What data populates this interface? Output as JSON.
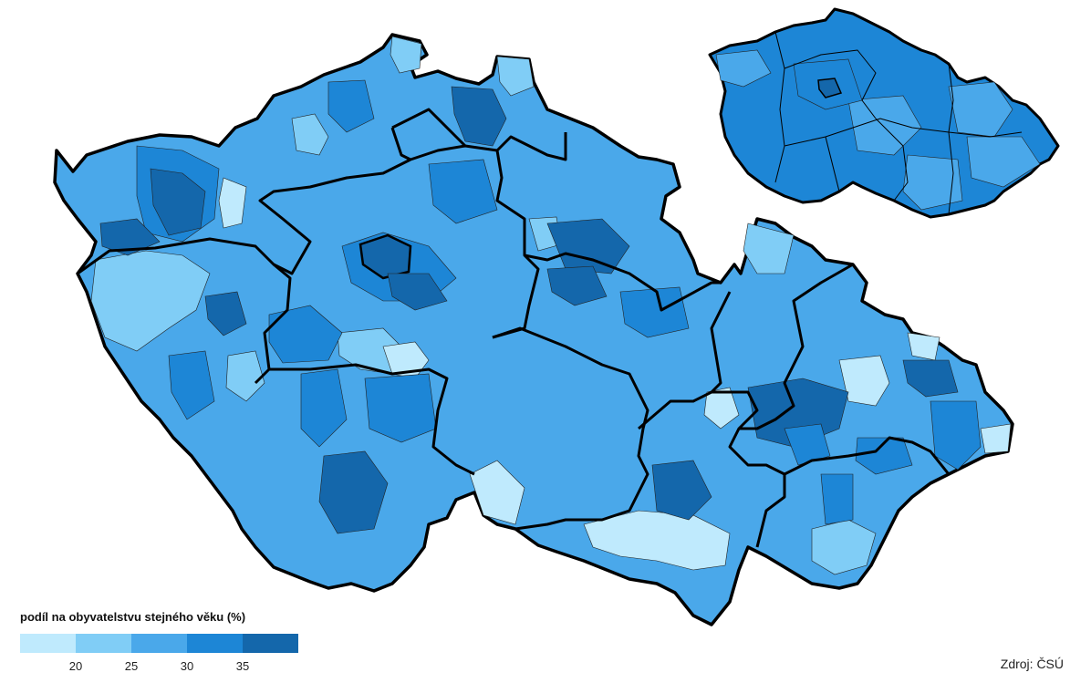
{
  "legend": {
    "title": "podíl na obyvatelstvu stejného věku (%)",
    "ticks": [
      "20",
      "25",
      "30",
      "35"
    ],
    "colors": [
      "#bfeafd",
      "#80cdf6",
      "#4aa8ea",
      "#1d86d6",
      "#1467ab"
    ]
  },
  "source": "Zdroj: ČSÚ",
  "map_colors": {
    "border": "#000000",
    "lightest": "#bfeafd",
    "light": "#80cdf6",
    "medium": "#4aa8ea",
    "dark": "#1d86d6",
    "darkest": "#1467ab"
  }
}
